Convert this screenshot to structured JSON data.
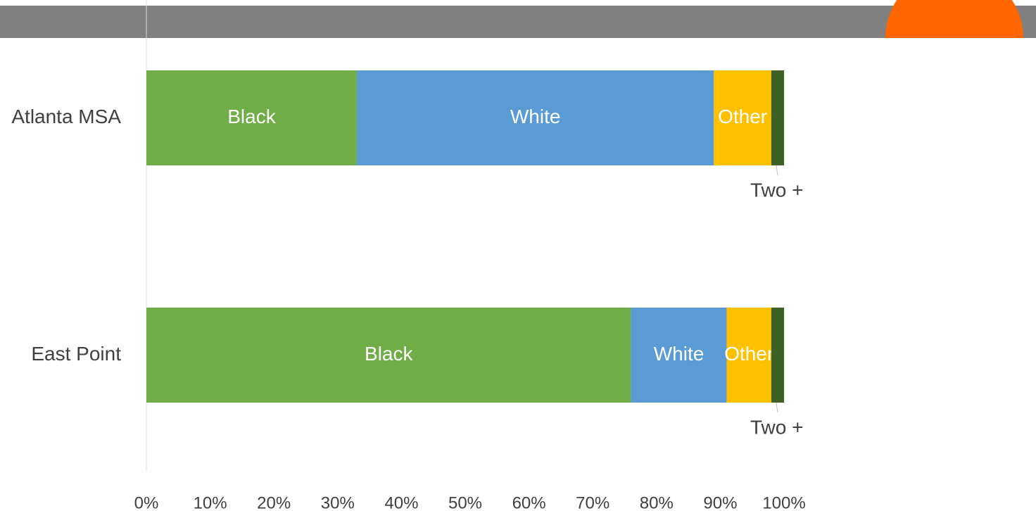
{
  "chart_data": {
    "type": "stacked_barh",
    "categories": [
      "Atlanta MSA",
      "East Point"
    ],
    "series": [
      {
        "name": "Black",
        "color": "#70ad47",
        "values": [
          33,
          76
        ]
      },
      {
        "name": "White",
        "color": "#5b9bd5",
        "values": [
          56,
          15
        ]
      },
      {
        "name": "Other",
        "color": "#ffc000",
        "values": [
          9,
          7
        ]
      },
      {
        "name": "Two +",
        "color": "#3e6126",
        "values": [
          2,
          2
        ]
      }
    ],
    "xlim": [
      0,
      100
    ],
    "xticks": [
      {
        "value": 0,
        "label": "0%"
      },
      {
        "value": 10,
        "label": "10%"
      },
      {
        "value": 20,
        "label": "20%"
      },
      {
        "value": 30,
        "label": "30%"
      },
      {
        "value": 40,
        "label": "40%"
      },
      {
        "value": 50,
        "label": "50%"
      },
      {
        "value": 60,
        "label": "60%"
      },
      {
        "value": 70,
        "label": "70%"
      },
      {
        "value": 80,
        "label": "80%"
      },
      {
        "value": 90,
        "label": "90%"
      },
      {
        "value": 100,
        "label": "100%"
      }
    ]
  }
}
